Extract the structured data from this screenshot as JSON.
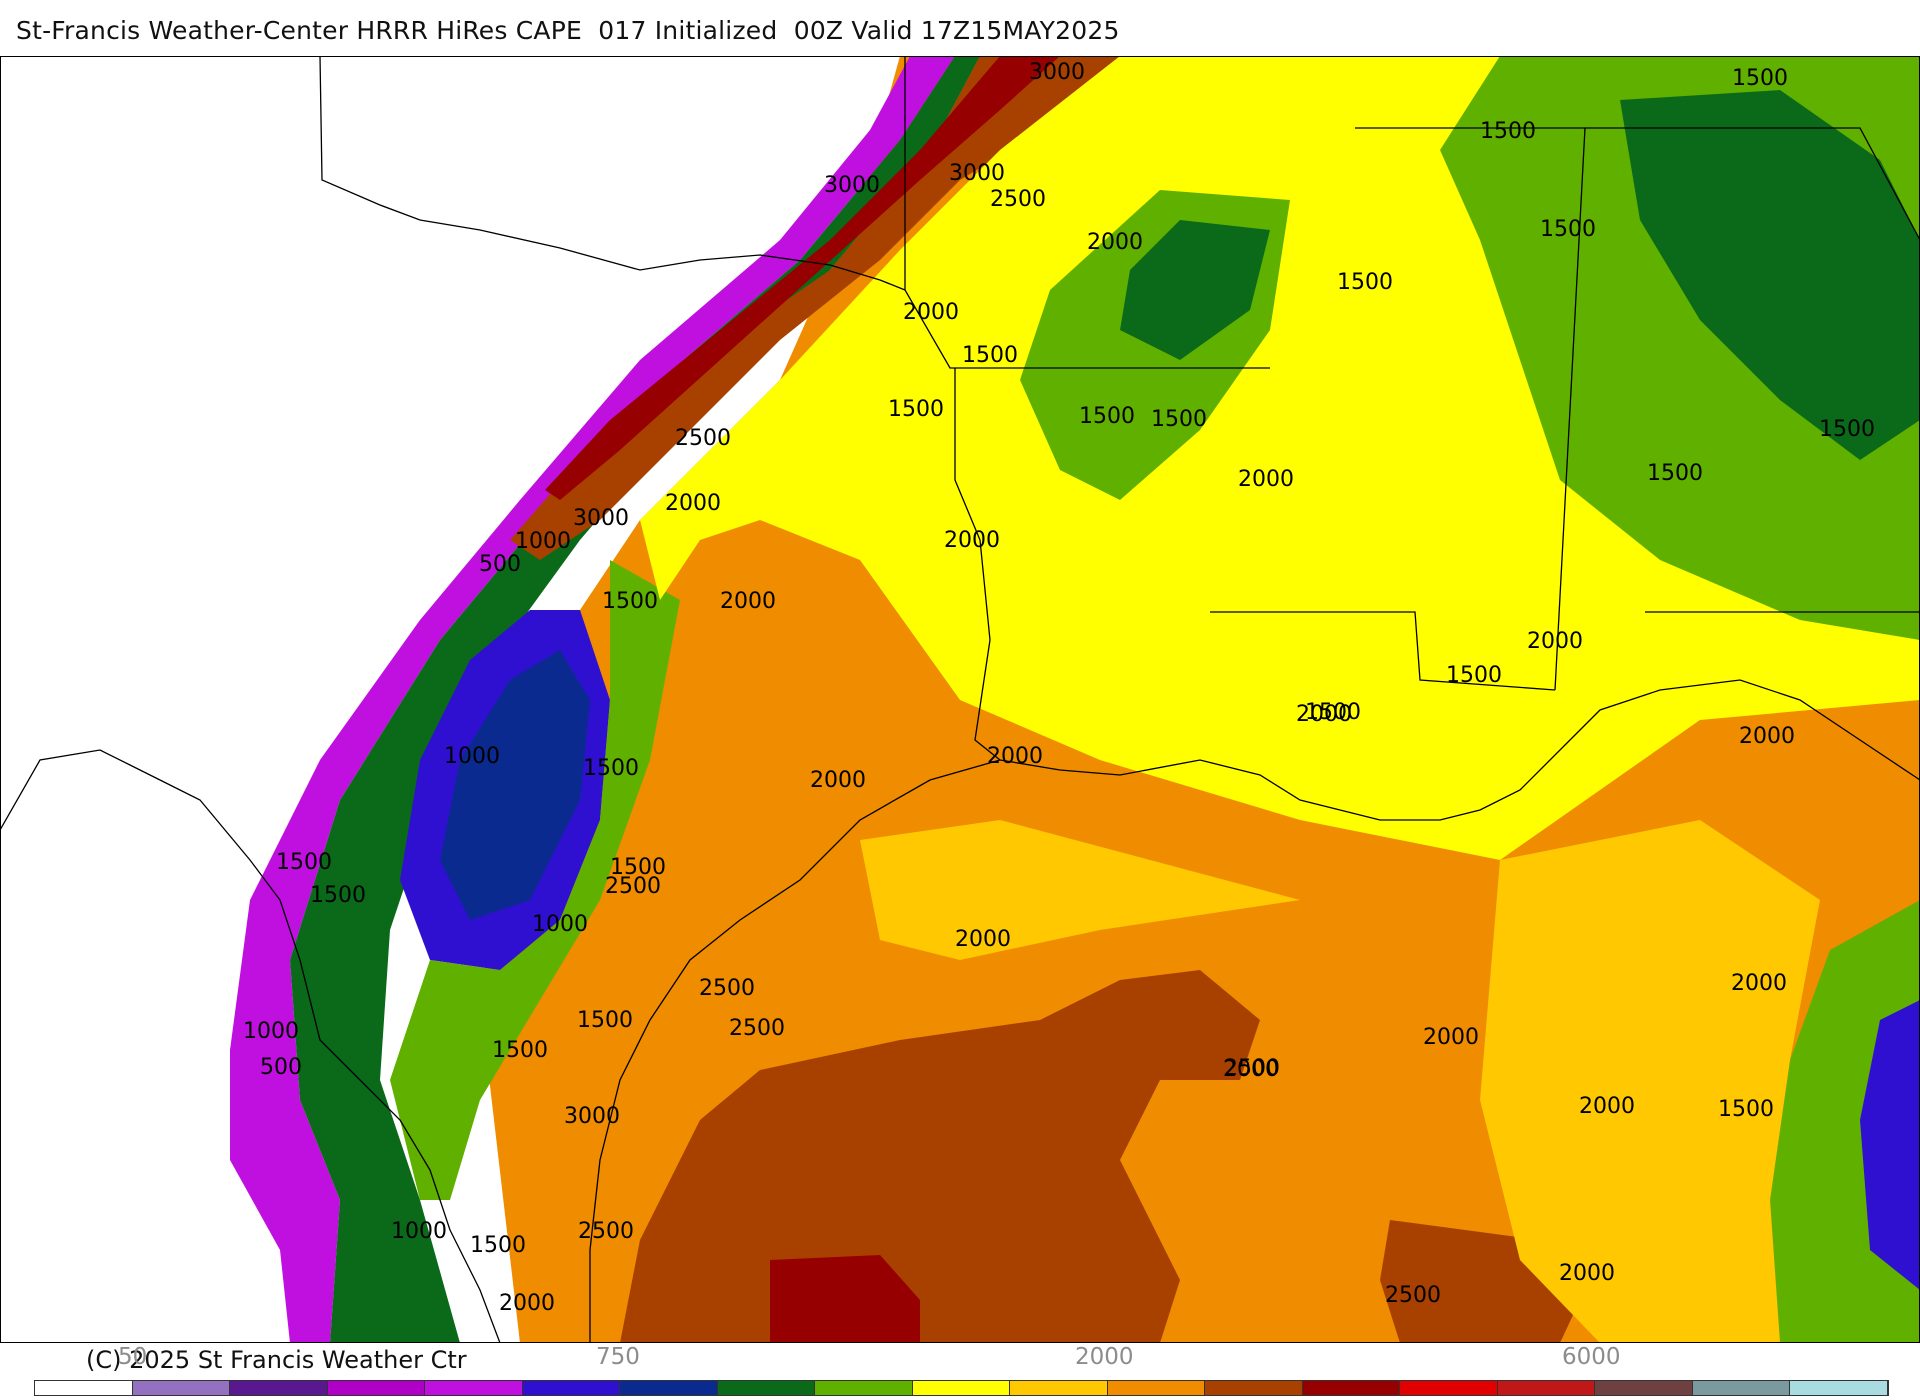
{
  "title": "St-Francis Weather-Center HRRR HiRes CAPE  017 Initialized  00Z Valid 17Z15MAY2025",
  "copyright": "(C) 2025 St Francis Weather Ctr",
  "colorbar": {
    "labels": [
      "50",
      "750",
      "2000",
      "6000"
    ],
    "colors": [
      "#ffffff",
      "#9370c0",
      "#5a1890",
      "#b000c8",
      "#c010e0",
      "#3010d0",
      "#0a2a90",
      "#0a6a1a",
      "#60b000",
      "#ffff00",
      "#ffc800",
      "#f08c00",
      "#a84000",
      "#960000",
      "#e00000",
      "#c01818",
      "#6e4040",
      "#7a9aa0",
      "#a8dce0"
    ]
  },
  "map": {
    "contour_labels": [
      "3000",
      "3000",
      "2500",
      "3000",
      "2000",
      "2000",
      "1500",
      "1500",
      "1500",
      "1500",
      "1500",
      "1500",
      "1500",
      "1500",
      "1500",
      "1500",
      "2500",
      "2000",
      "3000",
      "1000",
      "500",
      "1500",
      "2000",
      "2000",
      "2000",
      "1500",
      "2000",
      "2000",
      "2000",
      "1500",
      "2000",
      "1000",
      "1500",
      "2000",
      "1500",
      "1500",
      "2500",
      "1000",
      "2000",
      "2500",
      "2500",
      "2000",
      "2000",
      "2500",
      "1000",
      "1500",
      "500",
      "2000",
      "2000",
      "1500",
      "3000",
      "2500",
      "1000",
      "1500",
      "2000",
      "2500",
      "2000",
      "1500",
      "1500"
    ]
  }
}
